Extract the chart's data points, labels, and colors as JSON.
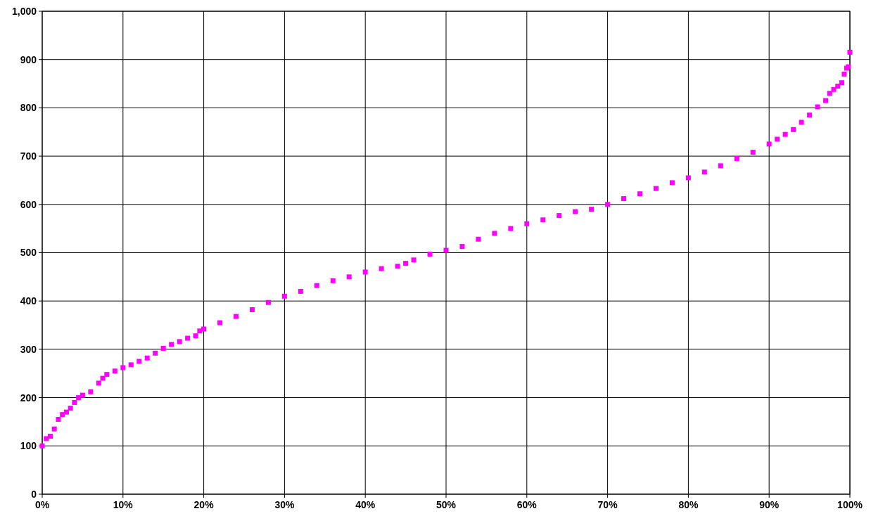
{
  "chart_data": {
    "type": "scatter",
    "marker": "square",
    "grid": true,
    "x": [
      0,
      0.5,
      1,
      1.5,
      2,
      2.5,
      3,
      3.5,
      4,
      4.5,
      5,
      6,
      7,
      7.5,
      8,
      9,
      10,
      11,
      12,
      13,
      14,
      15,
      16,
      17,
      18,
      19,
      19.5,
      20,
      22,
      24,
      26,
      28,
      30,
      32,
      34,
      36,
      38,
      40,
      42,
      44,
      45,
      46,
      48,
      50,
      52,
      54,
      56,
      58,
      60,
      62,
      64,
      66,
      68,
      70,
      72,
      74,
      76,
      78,
      80,
      82,
      84,
      86,
      88,
      90,
      91,
      92,
      93,
      94,
      95,
      96,
      97,
      97.5,
      98,
      98.5,
      99,
      99.3,
      99.6,
      99.8,
      100
    ],
    "series": [
      {
        "color": "#ff00ff",
        "values": [
          100,
          115,
          120,
          135,
          155,
          165,
          170,
          178,
          190,
          200,
          205,
          212,
          230,
          240,
          248,
          255,
          262,
          268,
          275,
          282,
          292,
          302,
          310,
          316,
          323,
          328,
          338,
          342,
          355,
          368,
          382,
          397,
          410,
          420,
          432,
          442,
          450,
          460,
          467,
          472,
          478,
          485,
          497,
          505,
          513,
          528,
          540,
          550,
          560,
          568,
          577,
          585,
          590,
          600,
          612,
          622,
          633,
          645,
          655,
          667,
          680,
          695,
          708,
          725,
          735,
          745,
          755,
          770,
          785,
          802,
          815,
          830,
          838,
          845,
          852,
          870,
          882,
          885,
          915
        ]
      }
    ],
    "xlim": [
      0,
      100
    ],
    "xticks": [
      {
        "value": 0,
        "label": "0%"
      },
      {
        "value": 10,
        "label": "10%"
      },
      {
        "value": 20,
        "label": "20%"
      },
      {
        "value": 30,
        "label": "30%"
      },
      {
        "value": 40,
        "label": "40%"
      },
      {
        "value": 50,
        "label": "50%"
      },
      {
        "value": 60,
        "label": "60%"
      },
      {
        "value": 70,
        "label": "70%"
      },
      {
        "value": 80,
        "label": "80%"
      },
      {
        "value": 90,
        "label": "90%"
      },
      {
        "value": 100,
        "label": "100%"
      }
    ],
    "ylim": [
      0,
      1000
    ],
    "yticks": [
      0,
      100,
      200,
      300,
      400,
      500,
      600,
      700,
      800,
      900,
      {
        "value": 1000,
        "label": "1,000"
      }
    ]
  }
}
